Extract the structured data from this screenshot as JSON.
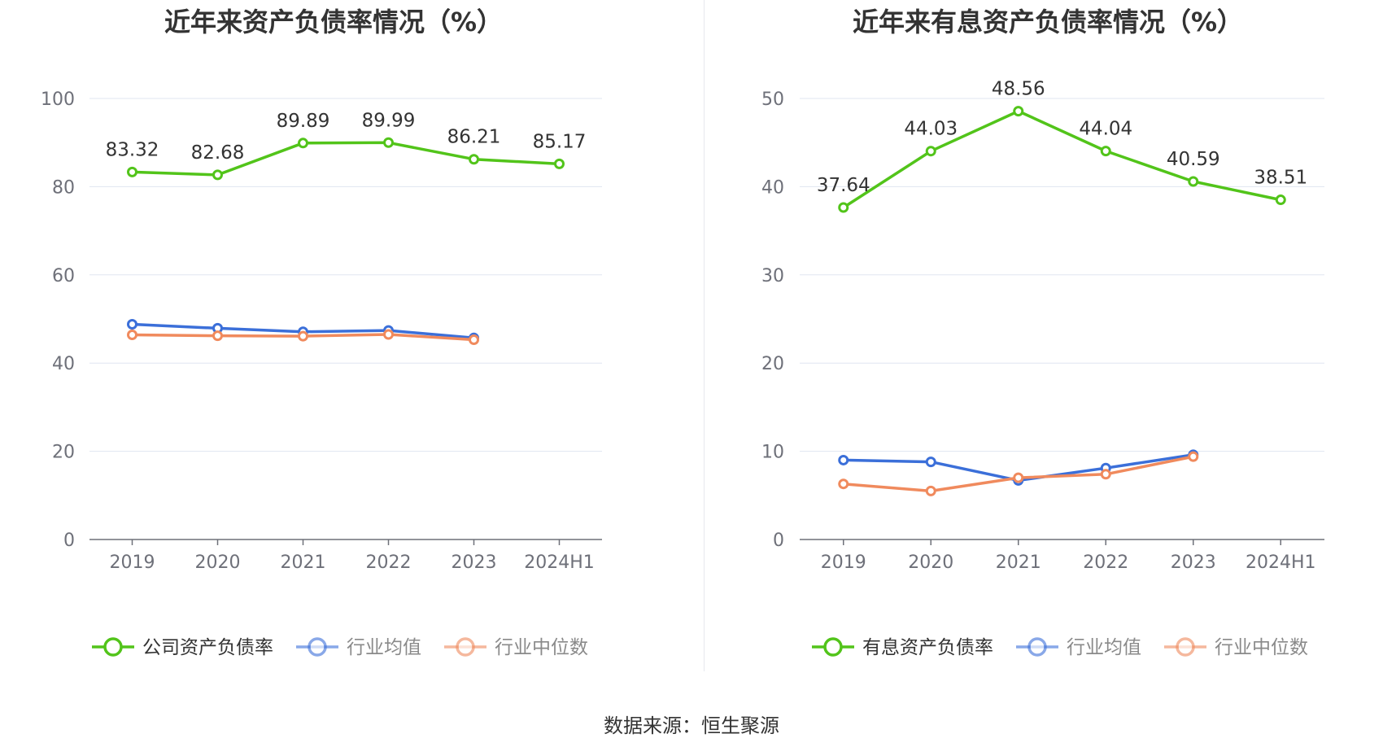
{
  "source": "数据来源：恒生聚源",
  "colors": {
    "green": "#52c41a",
    "blue": "#3b6fd9",
    "orange": "#f08a5d",
    "grid": "#e0e6f1",
    "axis": "#6e7079"
  },
  "chart_data": [
    {
      "id": "left",
      "type": "line",
      "title": "近年来资产负债率情况（%）",
      "categories": [
        "2019",
        "2020",
        "2021",
        "2022",
        "2023",
        "2024H1"
      ],
      "ylim": [
        0,
        100
      ],
      "yticks": [
        "0",
        "20",
        "40",
        "60",
        "80",
        "100"
      ],
      "grid": true,
      "legend_position": "bottom",
      "series": [
        {
          "name": "公司资产负债率",
          "color": "#52c41a",
          "values": [
            83.32,
            82.68,
            89.89,
            89.99,
            86.21,
            85.17
          ],
          "labels": [
            "83.32",
            "82.68",
            "89.89",
            "89.99",
            "86.21",
            "85.17"
          ]
        },
        {
          "name": "行业均值",
          "color": "#3b6fd9",
          "values": [
            48.8,
            47.9,
            47.1,
            47.4,
            45.7,
            null
          ]
        },
        {
          "name": "行业中位数",
          "color": "#f08a5d",
          "values": [
            46.4,
            46.2,
            46.1,
            46.5,
            45.3,
            null
          ]
        }
      ]
    },
    {
      "id": "right",
      "type": "line",
      "title": "近年来有息资产负债率情况（%）",
      "categories": [
        "2019",
        "2020",
        "2021",
        "2022",
        "2023",
        "2024H1"
      ],
      "ylim": [
        0,
        50
      ],
      "yticks": [
        "0",
        "10",
        "20",
        "30",
        "40",
        "50"
      ],
      "grid": true,
      "legend_position": "bottom",
      "series": [
        {
          "name": "有息资产负债率",
          "color": "#52c41a",
          "values": [
            37.64,
            44.03,
            48.56,
            44.04,
            40.59,
            38.51
          ],
          "labels": [
            "37.64",
            "44.03",
            "48.56",
            "44.04",
            "40.59",
            "38.51"
          ]
        },
        {
          "name": "行业均值",
          "color": "#3b6fd9",
          "values": [
            9.0,
            8.8,
            6.7,
            8.1,
            9.6,
            null
          ]
        },
        {
          "name": "行业中位数",
          "color": "#f08a5d",
          "values": [
            6.3,
            5.5,
            7.0,
            7.4,
            9.4,
            null
          ]
        }
      ]
    }
  ]
}
